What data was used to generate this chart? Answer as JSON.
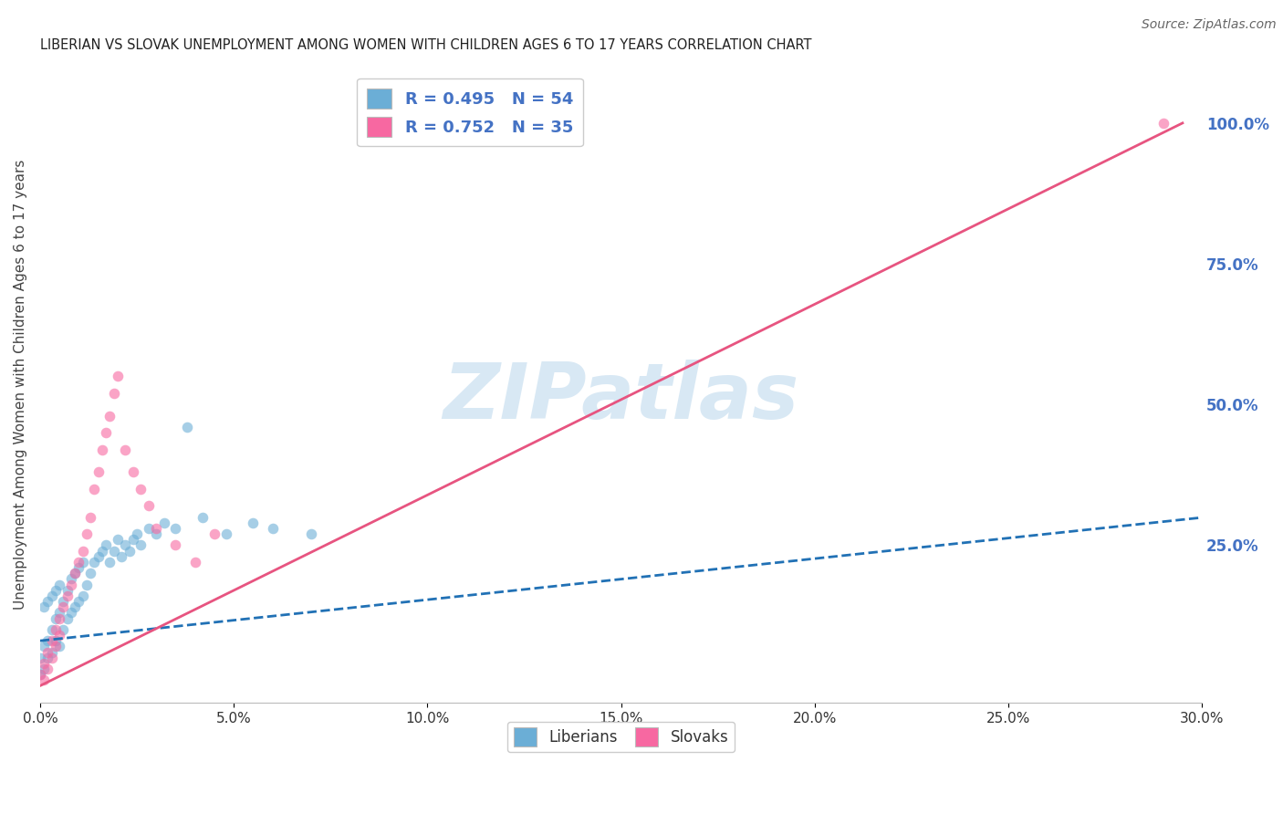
{
  "title": "LIBERIAN VS SLOVAK UNEMPLOYMENT AMONG WOMEN WITH CHILDREN AGES 6 TO 17 YEARS CORRELATION CHART",
  "source": "Source: ZipAtlas.com",
  "ylabel": "Unemployment Among Women with Children Ages 6 to 17 years",
  "right_yticks": [
    "100.0%",
    "75.0%",
    "50.0%",
    "25.0%"
  ],
  "right_ytick_vals": [
    1.0,
    0.75,
    0.5,
    0.25
  ],
  "legend_entries": [
    {
      "label": "R = 0.495   N = 54",
      "color": "#6baed6"
    },
    {
      "label": "R = 0.752   N = 35",
      "color": "#f768a1"
    }
  ],
  "liberian_scatter": {
    "color": "#6baed6",
    "alpha": 0.6,
    "size": 70,
    "x": [
      0.0,
      0.0,
      0.001,
      0.001,
      0.001,
      0.002,
      0.002,
      0.002,
      0.003,
      0.003,
      0.003,
      0.004,
      0.004,
      0.004,
      0.005,
      0.005,
      0.005,
      0.006,
      0.006,
      0.007,
      0.007,
      0.008,
      0.008,
      0.009,
      0.009,
      0.01,
      0.01,
      0.011,
      0.011,
      0.012,
      0.013,
      0.014,
      0.015,
      0.016,
      0.017,
      0.018,
      0.019,
      0.02,
      0.021,
      0.022,
      0.023,
      0.024,
      0.025,
      0.026,
      0.028,
      0.03,
      0.032,
      0.035,
      0.038,
      0.042,
      0.048,
      0.055,
      0.06,
      0.07
    ],
    "y": [
      0.02,
      0.05,
      0.03,
      0.07,
      0.14,
      0.05,
      0.08,
      0.15,
      0.06,
      0.1,
      0.16,
      0.08,
      0.12,
      0.17,
      0.07,
      0.13,
      0.18,
      0.1,
      0.15,
      0.12,
      0.17,
      0.13,
      0.19,
      0.14,
      0.2,
      0.15,
      0.21,
      0.16,
      0.22,
      0.18,
      0.2,
      0.22,
      0.23,
      0.24,
      0.25,
      0.22,
      0.24,
      0.26,
      0.23,
      0.25,
      0.24,
      0.26,
      0.27,
      0.25,
      0.28,
      0.27,
      0.29,
      0.28,
      0.46,
      0.3,
      0.27,
      0.29,
      0.28,
      0.27
    ]
  },
  "slovak_scatter": {
    "color": "#f768a1",
    "alpha": 0.6,
    "size": 70,
    "x": [
      0.0,
      0.001,
      0.001,
      0.002,
      0.002,
      0.003,
      0.003,
      0.004,
      0.004,
      0.005,
      0.005,
      0.006,
      0.007,
      0.008,
      0.009,
      0.01,
      0.011,
      0.012,
      0.013,
      0.014,
      0.015,
      0.016,
      0.017,
      0.018,
      0.019,
      0.02,
      0.022,
      0.024,
      0.026,
      0.028,
      0.03,
      0.035,
      0.04,
      0.045,
      0.29
    ],
    "y": [
      0.02,
      0.04,
      0.01,
      0.06,
      0.03,
      0.08,
      0.05,
      0.1,
      0.07,
      0.12,
      0.09,
      0.14,
      0.16,
      0.18,
      0.2,
      0.22,
      0.24,
      0.27,
      0.3,
      0.35,
      0.38,
      0.42,
      0.45,
      0.48,
      0.52,
      0.55,
      0.42,
      0.38,
      0.35,
      0.32,
      0.28,
      0.25,
      0.22,
      0.27,
      1.0
    ]
  },
  "liberian_line": {
    "color": "#2171b5",
    "style": "--",
    "linewidth": 2.0,
    "x0": 0.0,
    "x1": 0.3,
    "intercept": 0.08,
    "slope": 0.73
  },
  "slovak_line": {
    "color": "#e75480",
    "style": "-",
    "linewidth": 2.0,
    "x0": 0.0,
    "x1": 0.295,
    "intercept": 0.0,
    "slope": 3.39
  },
  "watermark_text": "ZIPatlas",
  "watermark_color": "#c8dff0",
  "watermark_alpha": 0.7,
  "background_color": "#ffffff",
  "grid_color": "#d0d0d0",
  "title_fontsize": 10.5,
  "axis_label_fontsize": 11,
  "tick_fontsize": 11,
  "legend_fontsize": 13,
  "right_tick_color": "#4472c4",
  "xlim": [
    0.0,
    0.3
  ],
  "ylim": [
    -0.03,
    1.1
  ]
}
